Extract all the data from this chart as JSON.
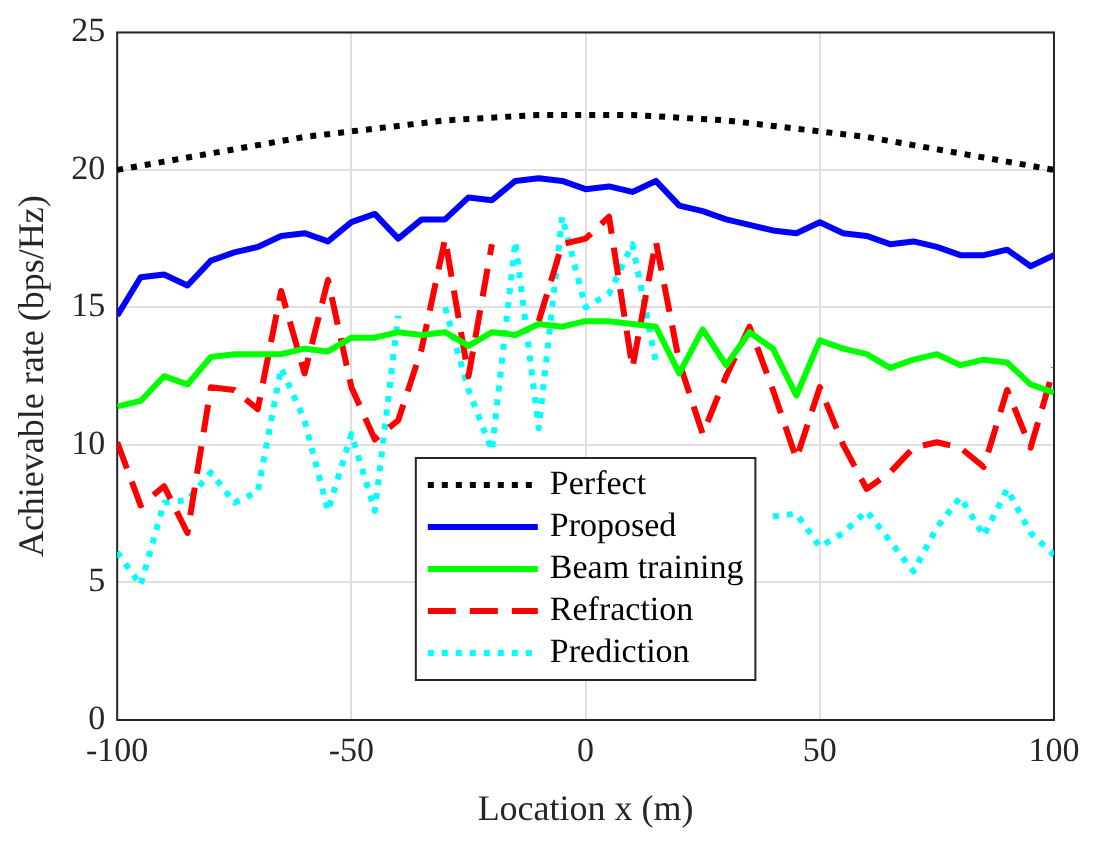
{
  "chart_data": {
    "type": "line",
    "xlabel": "Location x (m)",
    "ylabel": "Achievable rate (bps/Hz)",
    "x": [
      -100,
      -95,
      -90,
      -85,
      -80,
      -75,
      -70,
      -65,
      -60,
      -55,
      -50,
      -45,
      -40,
      -35,
      -30,
      -25,
      -20,
      -15,
      -10,
      -5,
      0,
      5,
      10,
      15,
      20,
      25,
      30,
      35,
      40,
      45,
      50,
      55,
      60,
      65,
      70,
      75,
      80,
      85,
      90,
      95,
      100
    ],
    "xlim": [
      -100,
      100
    ],
    "xticks": [
      -100,
      -50,
      0,
      50,
      100
    ],
    "ylim": [
      0,
      25
    ],
    "yticks": [
      0,
      5,
      10,
      15,
      20,
      25
    ],
    "grid": true,
    "legend": "bottom",
    "marker": "none",
    "series": [
      {
        "name": "Perfect",
        "color": "#000000",
        "line_style": "dotted",
        "values": [
          20.0,
          20.15,
          20.3,
          20.45,
          20.6,
          20.75,
          20.9,
          21.05,
          21.2,
          21.3,
          21.4,
          21.5,
          21.6,
          21.7,
          21.8,
          21.85,
          21.9,
          21.95,
          22.0,
          22.0,
          22.0,
          22.0,
          22.0,
          21.95,
          21.9,
          21.85,
          21.8,
          21.7,
          21.6,
          21.5,
          21.4,
          21.3,
          21.2,
          21.05,
          20.9,
          20.75,
          20.6,
          20.45,
          20.3,
          20.15,
          20.0
        ]
      },
      {
        "name": "Proposed",
        "color": "#0000ff",
        "line_style": "solid",
        "values": [
          14.7,
          16.1,
          16.2,
          15.8,
          16.7,
          17.0,
          17.2,
          17.6,
          17.7,
          17.4,
          18.1,
          18.4,
          17.5,
          18.2,
          18.2,
          19.0,
          18.9,
          19.6,
          19.7,
          19.6,
          19.3,
          19.4,
          19.2,
          19.6,
          18.7,
          18.5,
          18.2,
          18.0,
          17.8,
          17.7,
          18.1,
          17.7,
          17.6,
          17.3,
          17.4,
          17.2,
          16.9,
          16.9,
          17.1,
          16.5,
          16.9
        ]
      },
      {
        "name": "Beam training",
        "color": "#00ff00",
        "line_style": "solid",
        "values": [
          11.4,
          11.6,
          12.5,
          12.2,
          13.2,
          13.3,
          13.3,
          13.3,
          13.5,
          13.4,
          13.9,
          13.9,
          14.1,
          14.0,
          14.1,
          13.6,
          14.1,
          14.0,
          14.4,
          14.3,
          14.5,
          14.5,
          14.4,
          14.3,
          12.6,
          14.2,
          12.9,
          14.1,
          13.5,
          11.8,
          13.8,
          13.5,
          13.3,
          12.8,
          13.1,
          13.3,
          12.9,
          13.1,
          13.0,
          12.2,
          11.9
        ]
      },
      {
        "name": "Refraction",
        "color": "#ff0000",
        "line_style": "dashed",
        "values": [
          10.1,
          7.8,
          8.5,
          6.8,
          12.1,
          12.0,
          11.3,
          15.6,
          12.6,
          16.0,
          12.1,
          10.2,
          10.9,
          13.5,
          17.5,
          12.5,
          17.3,
          null,
          14.5,
          17.3,
          17.5,
          18.3,
          12.8,
          17.4,
          13.0,
          10.4,
          12.5,
          14.3,
          12.0,
          9.5,
          12.1,
          10.0,
          8.4,
          9.0,
          9.9,
          10.1,
          9.9,
          9.2,
          12.0,
          9.9,
          12.8
        ]
      },
      {
        "name": "Prediction",
        "color": "#00ffff",
        "line_style": "dotted",
        "values": [
          6.1,
          4.9,
          7.9,
          8.0,
          9.0,
          7.9,
          8.3,
          12.8,
          10.9,
          7.6,
          10.4,
          7.6,
          14.7,
          null,
          15.0,
          12.0,
          9.8,
          17.4,
          10.6,
          18.3,
          15.0,
          15.5,
          17.3,
          13.0,
          null,
          null,
          null,
          null,
          7.4,
          7.5,
          6.3,
          6.8,
          7.6,
          6.5,
          5.4,
          7.0,
          8.1,
          6.7,
          8.4,
          6.8,
          6.0
        ]
      }
    ]
  }
}
